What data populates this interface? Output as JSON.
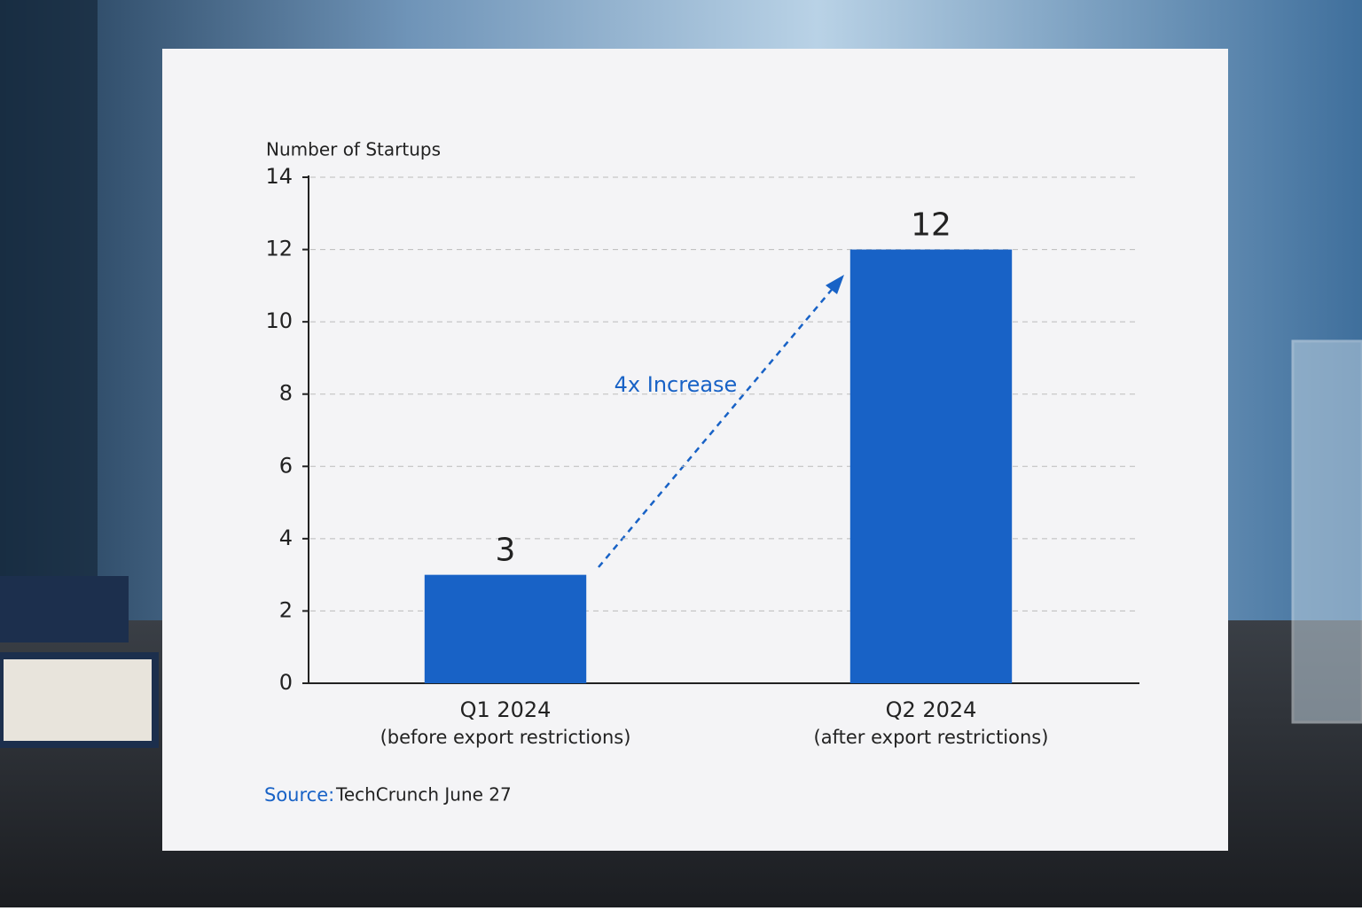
{
  "chart_data": {
    "type": "bar",
    "y_axis_label": "Number of Startups",
    "categories": [
      "Q1 2024",
      "Q2 2024"
    ],
    "category_notes": [
      "(before export restrictions)",
      "(after export restrictions)"
    ],
    "values": [
      3,
      12
    ],
    "color": "#1862c6",
    "ylim": [
      0,
      14
    ],
    "yticks": [
      0,
      2,
      4,
      6,
      8,
      10,
      12,
      14
    ],
    "grid": true,
    "annotation": "4x Increase",
    "source_label": "Source:",
    "source": "TechCrunch June 27"
  }
}
